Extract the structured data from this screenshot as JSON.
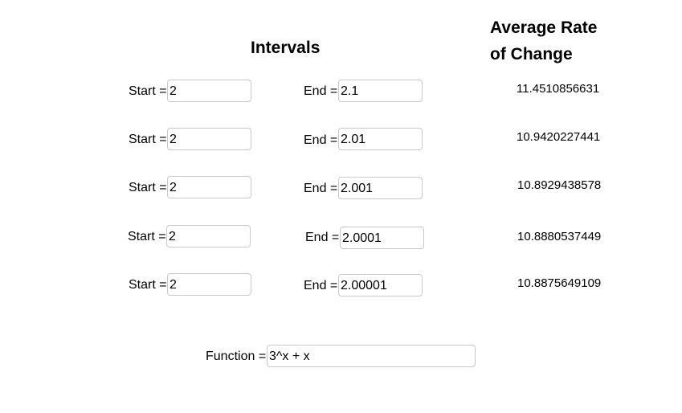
{
  "headings": {
    "intervals": "Intervals",
    "rate_line1": "Average Rate",
    "rate_line2": "of Change"
  },
  "labels": {
    "start": "Start =",
    "end": "End =",
    "function": "Function ="
  },
  "rows": [
    {
      "start": "2",
      "end": "2.1",
      "rate": "11.4510856631"
    },
    {
      "start": "2",
      "end": "2.01",
      "rate": "10.9420227441"
    },
    {
      "start": "2",
      "end": "2.001",
      "rate": "10.8929438578"
    },
    {
      "start": "2",
      "end": "2.0001",
      "rate": "10.8880537449"
    },
    {
      "start": "2",
      "end": "2.00001",
      "rate": "10.8875649109"
    }
  ],
  "function": {
    "value": "3^x + x"
  }
}
